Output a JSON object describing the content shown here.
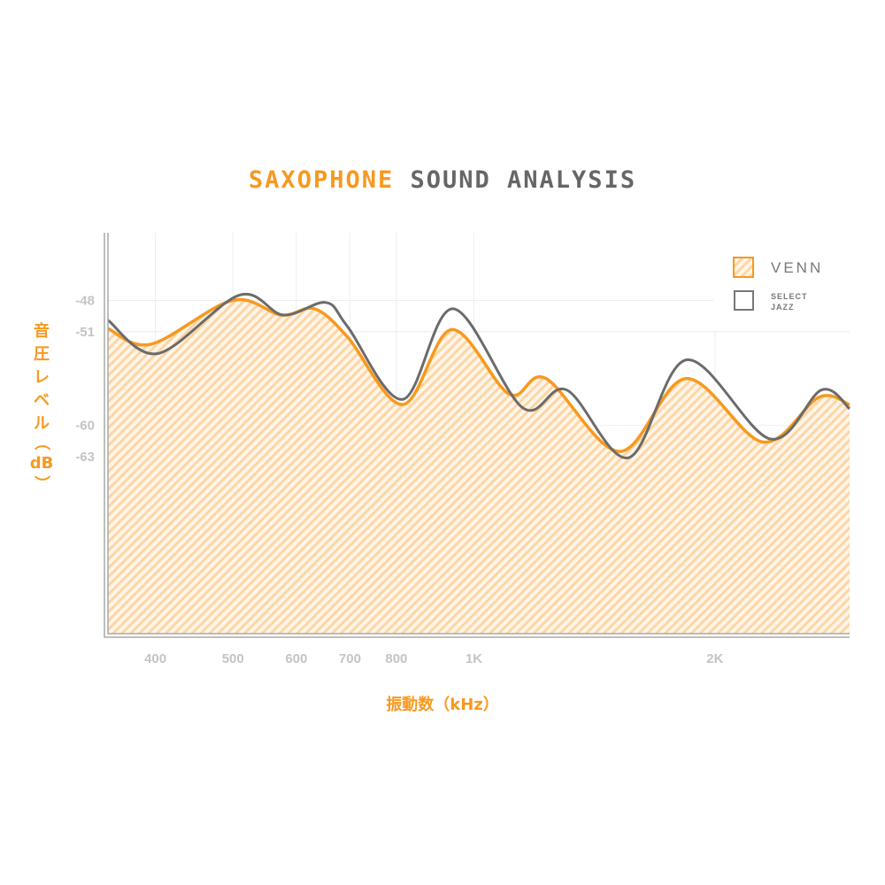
{
  "title": {
    "highlight": "SAXOPHONE",
    "rest": "SOUND ANALYSIS"
  },
  "colors": {
    "venn": "#f7991f",
    "venn_fill": "#fde0b8",
    "select_jazz": "#6b6b6b",
    "grid": "#eeeeee",
    "axis": "#a8a8a8",
    "tick": "#c4c4c4"
  },
  "chart_data": {
    "type": "area",
    "title": "SAXOPHONE SOUND ANALYSIS",
    "xlabel": "振動数（kHz）",
    "ylabel_chars": [
      "音",
      "圧",
      "レ",
      "ベ",
      "ル",
      "（",
      "dB",
      "）"
    ],
    "ylabel": "音圧レベル（dB）",
    "x_scale": "log",
    "xlim": [
      349,
      2946
    ],
    "ylim": [
      -80,
      -41.5
    ],
    "x_ticks": [
      {
        "value": 400,
        "label": "400"
      },
      {
        "value": 500,
        "label": "500"
      },
      {
        "value": 600,
        "label": "600"
      },
      {
        "value": 700,
        "label": "700"
      },
      {
        "value": 800,
        "label": "800"
      },
      {
        "value": 1000,
        "label": "1K"
      },
      {
        "value": 2000,
        "label": "2K"
      }
    ],
    "y_ticks": [
      {
        "value": -48,
        "label": "-48"
      },
      {
        "value": -51,
        "label": "-51"
      },
      {
        "value": -60,
        "label": "-60"
      },
      {
        "value": -63,
        "label": "-63"
      }
    ],
    "grid": true,
    "legend_position": "top-right",
    "series": [
      {
        "name": "VENN",
        "style": "hatched-area",
        "x": [
          349,
          395,
          499,
          575,
          632,
          695,
          815,
          938,
          1107,
          1230,
          1521,
          1841,
          2296,
          2697,
          2946
        ],
        "y": [
          -50.7,
          -52.2,
          -48.0,
          -49.4,
          -48.8,
          -51.5,
          -58.0,
          -50.8,
          -57.0,
          -55.5,
          -62.5,
          -55.5,
          -61.6,
          -57.3,
          -58.0
        ]
      },
      {
        "name": "SELECT JAZZ",
        "style": "line",
        "x": [
          349,
          403,
          509,
          578,
          653,
          695,
          815,
          942,
          1150,
          1306,
          1560,
          1845,
          2344,
          2716,
          2946
        ],
        "y": [
          -49.9,
          -53.1,
          -47.5,
          -49.4,
          -48.2,
          -50.5,
          -57.5,
          -48.8,
          -58.3,
          -56.6,
          -63.1,
          -53.7,
          -61.3,
          -56.6,
          -58.4
        ]
      }
    ]
  },
  "legend": {
    "items": [
      {
        "label": "VENN"
      },
      {
        "line1": "SELECT",
        "line2": "JAZZ"
      }
    ]
  }
}
